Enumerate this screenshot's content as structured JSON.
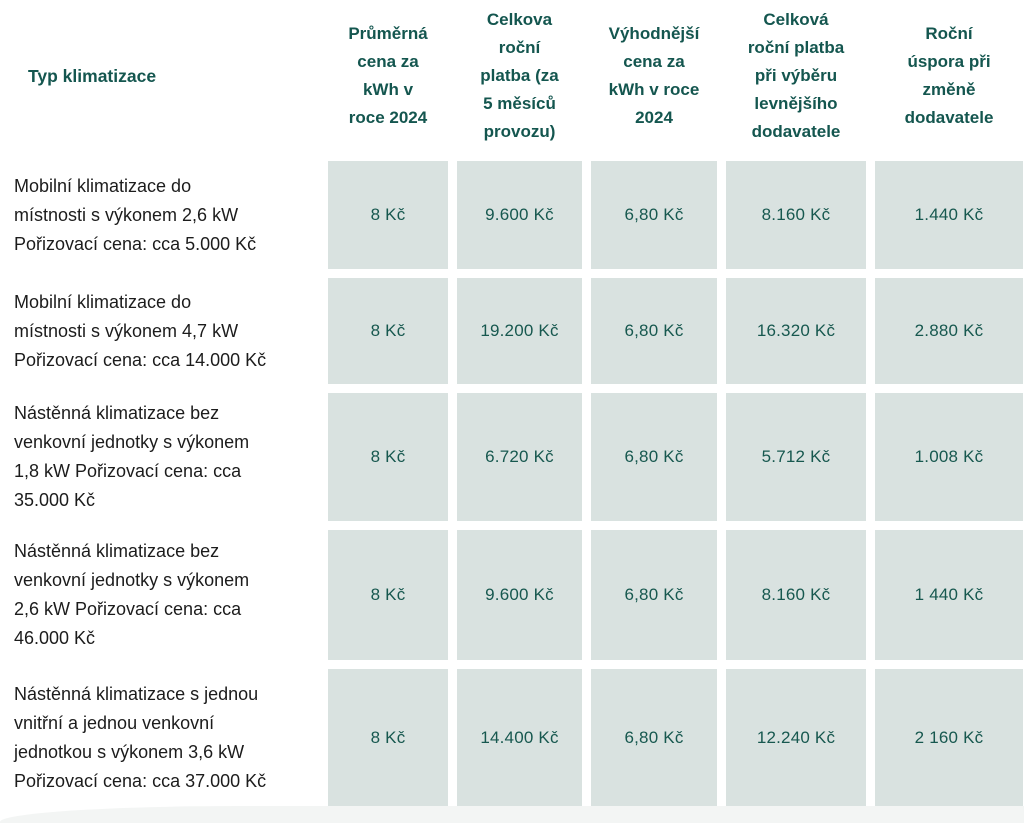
{
  "page": {
    "background": "#ffffff",
    "accent_text_color": "#14564f",
    "value_cell_background": "#d9e2e0",
    "body_text_color": "#1c1c1c",
    "footer_band_color": "#f3f5f4"
  },
  "table": {
    "headers": [
      "Typ klimatizace",
      "Průměrná\ncena za\nkWh v\nroce 2024",
      "Celkova\nroční\nplatba (za\n5 měsíců\nprovozu)",
      "Výhodnější\ncena za\nkWh v roce\n2024",
      "Celková\nroční platba\npři výběru\nlevnějšího\ndodavatele",
      "Roční\núspora při\nzměně\ndodavatele"
    ],
    "rows": [
      {
        "label": "Mobilní klimatizace do\nmístnosti s výkonem 2,6 kW\nPořizovací cena: cca 5.000 Kč",
        "values": [
          "8 Kč",
          "9.600 Kč",
          "6,80 Kč",
          "8.160 Kč",
          "1.440 Kč"
        ]
      },
      {
        "label": "Mobilní klimatizace do\nmístnosti s výkonem 4,7 kW\nPořizovací cena: cca 14.000 Kč",
        "values": [
          "8 Kč",
          "19.200 Kč",
          "6,80 Kč",
          "16.320 Kč",
          "2.880 Kč"
        ]
      },
      {
        "label": "Nástěnná klimatizace bez\nvenkovní jednotky s výkonem\n1,8 kW Pořizovací cena: cca\n35.000 Kč",
        "values": [
          "8 Kč",
          "6.720 Kč",
          "6,80 Kč",
          "5.712 Kč",
          "1.008 Kč"
        ]
      },
      {
        "label": "Nástěnná klimatizace bez\nvenkovní jednotky s výkonem\n2,6 kW Pořizovací cena: cca\n46.000 Kč",
        "values": [
          "8 Kč",
          "9.600 Kč",
          "6,80 Kč",
          "8.160 Kč",
          "1 440 Kč"
        ]
      },
      {
        "label": "Nástěnná klimatizace s jednou\nvnitřní a jednou venkovní\njednotkou s výkonem 3,6 kW\nPořizovací cena: cca 37.000 Kč",
        "values": [
          "8 Kč",
          "14.400 Kč",
          "6,80 Kč",
          "12.240 Kč",
          "2 160 Kč"
        ]
      }
    ]
  },
  "chart_data": {
    "type": "table",
    "columns": [
      "Typ klimatizace",
      "Průměrná cena za kWh v roce 2024",
      "Celkova roční platba (za 5 měsíců provozu)",
      "Výhodnější cena za kWh v roce 2024",
      "Celková roční platba při výběru levnějšího dodavatele",
      "Roční úspora při změně dodavatele"
    ],
    "rows": [
      [
        "Mobilní klimatizace do místnosti s výkonem 2,6 kW Pořizovací cena: cca 5.000 Kč",
        "8 Kč",
        "9.600 Kč",
        "6,80 Kč",
        "8.160 Kč",
        "1.440 Kč"
      ],
      [
        "Mobilní klimatizace do místnosti s výkonem 4,7 kW Pořizovací cena: cca 14.000 Kč",
        "8 Kč",
        "19.200 Kč",
        "6,80 Kč",
        "16.320 Kč",
        "2.880 Kč"
      ],
      [
        "Nástěnná klimatizace bez venkovní jednotky s výkonem 1,8 kW Pořizovací cena: cca 35.000 Kč",
        "8 Kč",
        "6.720 Kč",
        "6,80 Kč",
        "5.712 Kč",
        "1.008 Kč"
      ],
      [
        "Nástěnná klimatizace bez venkovní jednotky s výkonem 2,6 kW Pořizovací cena: cca 46.000 Kč",
        "8 Kč",
        "9.600 Kč",
        "6,80 Kč",
        "8.160 Kč",
        "1 440 Kč"
      ],
      [
        "Nástěnná klimatizace s jednou vnitřní a jednou venkovní jednotkou s výkonem 3,6 kW Pořizovací cena: cca 37.000 Kč",
        "8 Kč",
        "14.400 Kč",
        "6,80 Kč",
        "12.240 Kč",
        "2 160 Kč"
      ]
    ]
  }
}
